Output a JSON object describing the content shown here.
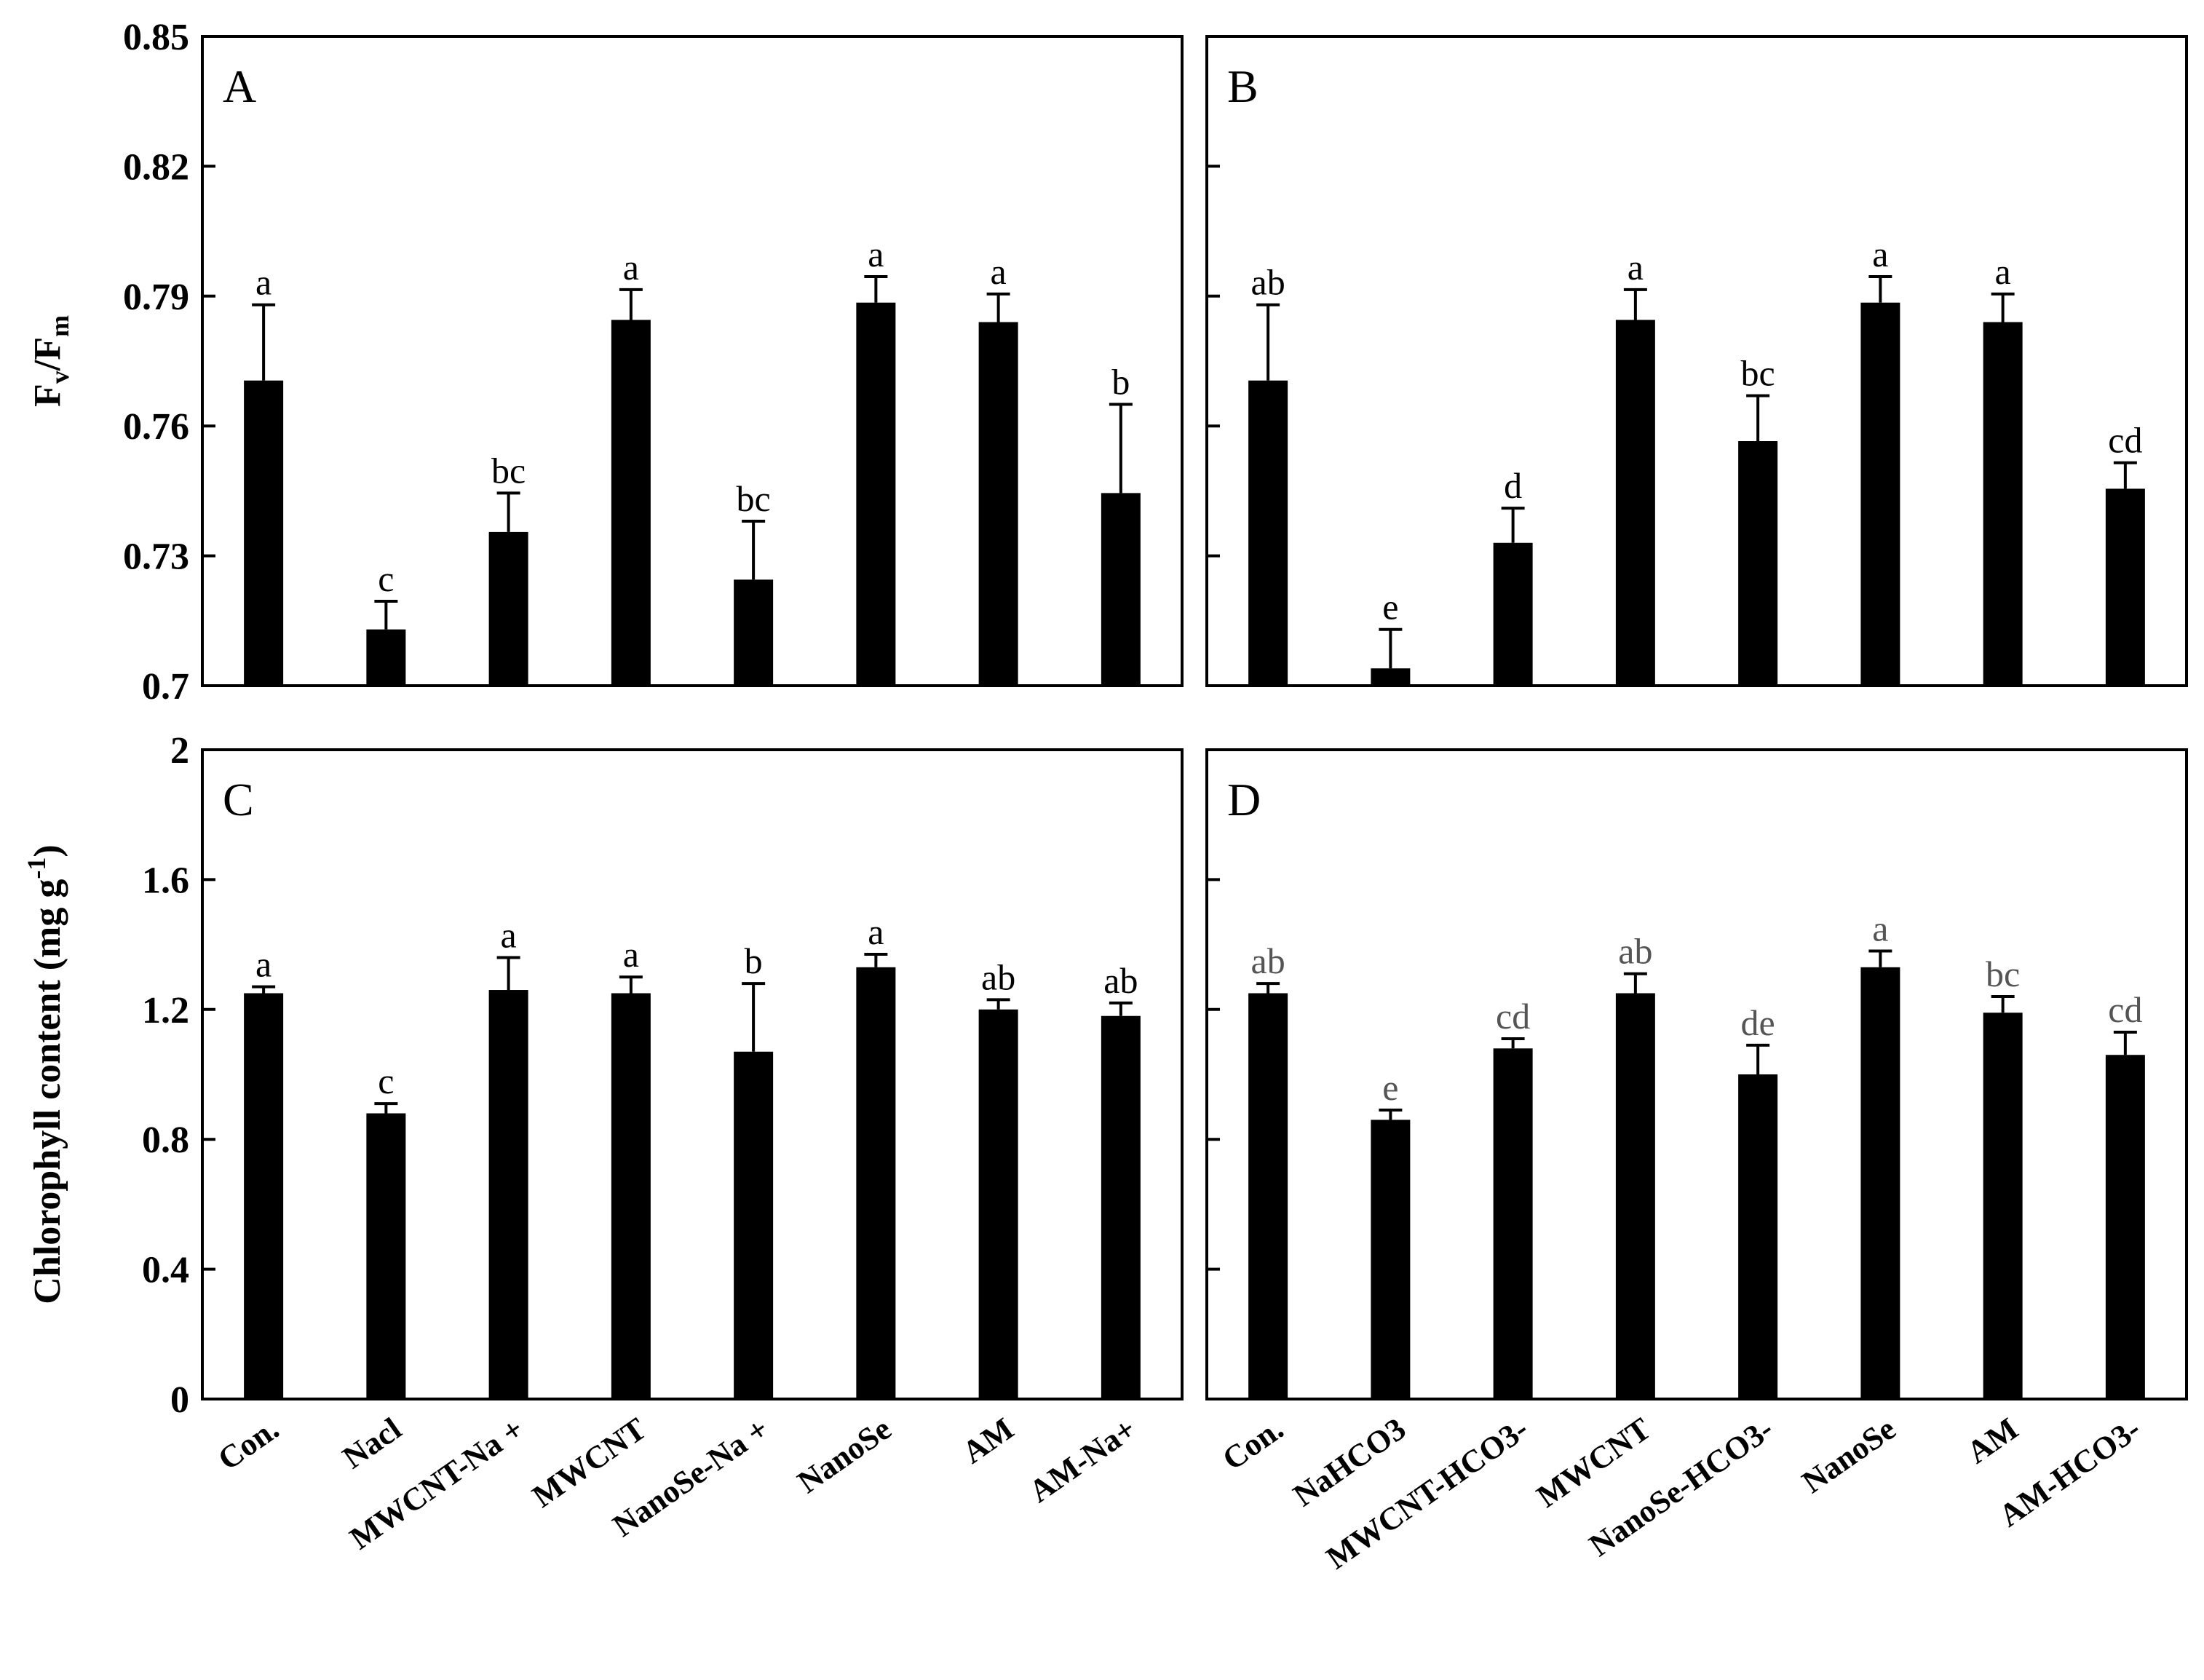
{
  "chart_data": [
    {
      "panel": "A",
      "type": "bar",
      "ylabel_main": "F",
      "ylabel_sub_v": "v",
      "ylabel_sep": "/F",
      "ylabel_sub_m": "m",
      "ylim": [
        0.7,
        0.85
      ],
      "yticks": [
        "0.7",
        "0.73",
        "0.76",
        "0.79",
        "0.82",
        "0.85"
      ],
      "categories": [
        "Con.",
        "Nacl",
        "MWCNT-Na +",
        "MWCNT",
        "NanoSe-Na +",
        "NanoSe",
        "AM",
        "AM-Na+"
      ],
      "values": [
        0.7705,
        0.713,
        0.7355,
        0.7845,
        0.7245,
        0.7885,
        0.784,
        0.7445
      ],
      "errors": [
        0.0175,
        0.0065,
        0.009,
        0.007,
        0.0135,
        0.006,
        0.0065,
        0.0205
      ],
      "sig": [
        "a",
        "c",
        "bc",
        "a",
        "bc",
        "a",
        "a",
        "b"
      ],
      "sig_color": "#000000"
    },
    {
      "panel": "B",
      "type": "bar",
      "ylim": [
        0.7,
        0.85
      ],
      "categories": [
        "Con.",
        "NaHCO3",
        "MWCNT-HCO3-",
        "MWCNT",
        "NanoSe-HCO3-",
        "NanoSe",
        "AM",
        "AM-HCO3-"
      ],
      "values": [
        0.7705,
        0.704,
        0.733,
        0.7845,
        0.7565,
        0.7885,
        0.784,
        0.7455
      ],
      "errors": [
        0.0175,
        0.009,
        0.008,
        0.007,
        0.0105,
        0.006,
        0.0065,
        0.006
      ],
      "sig": [
        "ab",
        "e",
        "d",
        "a",
        "bc",
        "a",
        "a",
        "cd"
      ],
      "sig_color": "#000000"
    },
    {
      "panel": "C",
      "type": "bar",
      "ylabel": "Chlorophyll  content (mg g",
      "ylabel_sup": "-1",
      "ylabel_end": ")",
      "ylim": [
        0,
        2
      ],
      "yticks": [
        "0",
        "0.4",
        "0.8",
        "1.2",
        "1.6",
        "2"
      ],
      "categories": [
        "Con.",
        "Nacl",
        "MWCNT-Na +",
        "MWCNT",
        "NanoSe-Na +",
        "NanoSe",
        "AM",
        "AM-Na+"
      ],
      "values": [
        1.25,
        0.88,
        1.26,
        1.25,
        1.07,
        1.33,
        1.2,
        1.18
      ],
      "errors": [
        0.02,
        0.03,
        0.1,
        0.05,
        0.21,
        0.04,
        0.03,
        0.04
      ],
      "sig": [
        "a",
        "c",
        "a",
        "a",
        "b",
        "a",
        "ab",
        "ab"
      ],
      "sig_color": "#000000"
    },
    {
      "panel": "D",
      "type": "bar",
      "ylim": [
        0,
        2
      ],
      "categories": [
        "Con.",
        "NaHCO3",
        "MWCNT-HCO3-",
        "MWCNT",
        "NanoSe-HCO3-",
        "NanoSe",
        "AM",
        "AM-HCO3-"
      ],
      "values": [
        1.25,
        0.86,
        1.08,
        1.25,
        1.0,
        1.33,
        1.19,
        1.06
      ],
      "errors": [
        0.03,
        0.03,
        0.03,
        0.06,
        0.09,
        0.05,
        0.05,
        0.07
      ],
      "sig": [
        "ab",
        "e",
        "cd",
        "ab",
        "de",
        "a",
        "bc",
        "cd"
      ],
      "sig_color": "#555555"
    }
  ],
  "style": {
    "bar_color": "#000000",
    "axis_color": "#000000"
  }
}
